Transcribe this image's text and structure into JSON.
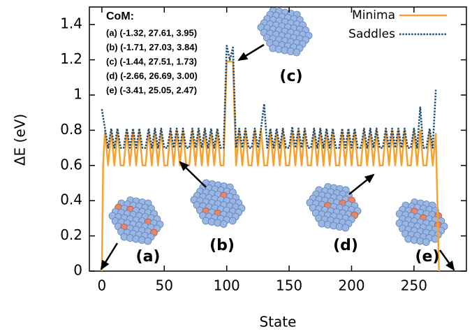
{
  "chart_data": {
    "type": "line",
    "y_label": "ΔE (eV)",
    "x_label": "State",
    "xlim": [
      -10,
      292
    ],
    "ylim": [
      0,
      1.5
    ],
    "xticks": [
      0,
      50,
      100,
      150,
      200,
      250
    ],
    "yticks": [
      0,
      0.2,
      0.4,
      0.6,
      0.8,
      1,
      1.2,
      1.4
    ],
    "grid": false,
    "legend": "upper right",
    "annotations": {
      "com_title": "CoM:",
      "com_lines": [
        "(a) (-1.32, 27.61, 3.95)",
        "(b) (-1.71, 27.03, 3.84)",
        "(c) (-1.44, 27.51, 1.73)",
        "(d) (-2.66, 26.69, 3.00)",
        "(e) (-3.41, 25.05, 2.47)"
      ],
      "labels": [
        "(a)",
        "(b)",
        "(c)",
        "(d)",
        "(e)"
      ]
    },
    "series": [
      {
        "name": "Minima",
        "color": "#f7a12f",
        "style": "solid",
        "x": [
          0,
          1,
          2.5,
          5,
          7.5,
          10,
          12.5,
          15,
          17.5,
          20,
          22.5,
          25,
          27.5,
          30,
          32.5,
          35,
          37.5,
          40,
          42.5,
          45,
          47.5,
          50,
          52.5,
          55,
          57.5,
          60,
          62.5,
          65,
          67.5,
          70,
          72.5,
          75,
          77.5,
          80,
          82.5,
          85,
          87.5,
          90,
          92.5,
          95,
          97.5,
          100,
          102.5,
          105,
          107.5,
          110,
          112.5,
          115,
          117.5,
          120,
          122.5,
          125,
          127.5,
          130,
          132.5,
          135,
          137.5,
          140,
          142.5,
          145,
          147.5,
          150,
          152.5,
          155,
          157.5,
          160,
          162.5,
          165,
          167.5,
          170,
          172.5,
          175,
          177.5,
          180,
          182.5,
          185,
          187.5,
          190,
          192.5,
          195,
          197.5,
          200,
          202.5,
          205,
          207.5,
          210,
          212.5,
          215,
          217.5,
          220,
          222.5,
          225,
          227.5,
          230,
          232.5,
          235,
          237.5,
          240,
          242.5,
          245,
          247.5,
          250,
          252.5,
          255,
          257.5,
          260,
          262.5,
          265,
          267.5,
          270
        ],
        "values": [
          0,
          0.6,
          0.8,
          0.6,
          0.8,
          0.6,
          0.8,
          0.6,
          0.6,
          0.8,
          0.6,
          0.8,
          0.6,
          0.8,
          0.6,
          0.6,
          0.8,
          0.6,
          0.8,
          0.6,
          0.8,
          0.6,
          0.6,
          0.8,
          0.6,
          0.8,
          0.6,
          0.8,
          0.6,
          0.6,
          0.8,
          0.6,
          0.8,
          0.6,
          0.8,
          0.6,
          0.8,
          0.6,
          0.8,
          0.6,
          0.6,
          1.19,
          1.19,
          1.19,
          0.6,
          0.8,
          0.6,
          0.8,
          0.6,
          0.6,
          0.8,
          0.6,
          0.8,
          0.6,
          0.6,
          0.8,
          0.6,
          0.8,
          0.6,
          0.8,
          0.6,
          0.6,
          0.8,
          0.6,
          0.8,
          0.6,
          0.8,
          0.6,
          0.6,
          0.8,
          0.6,
          0.8,
          0.6,
          0.8,
          0.6,
          0.8,
          0.6,
          0.6,
          0.8,
          0.6,
          0.8,
          0.6,
          0.8,
          0.6,
          0.6,
          0.8,
          0.6,
          0.8,
          0.6,
          0.8,
          0.6,
          0.6,
          0.8,
          0.6,
          0.8,
          0.6,
          0.8,
          0.6,
          0.8,
          0.6,
          0.6,
          0.8,
          0.6,
          0.8,
          0.6,
          0.6,
          0.8,
          0.6,
          0.78,
          0
        ]
      },
      {
        "name": "Saddles",
        "color": "#1f4e79",
        "style": "dotted",
        "x": [
          0,
          2.5,
          5,
          7.5,
          10,
          12.5,
          15,
          17.5,
          20,
          22.5,
          25,
          27.5,
          30,
          32.5,
          35,
          37.5,
          40,
          42.5,
          45,
          47.5,
          50,
          52.5,
          55,
          57.5,
          60,
          62.5,
          65,
          67.5,
          70,
          72.5,
          75,
          77.5,
          80,
          82.5,
          85,
          87.5,
          90,
          92.5,
          95,
          97.5,
          100,
          102.5,
          105,
          107.5,
          110,
          112.5,
          115,
          117.5,
          120,
          122.5,
          125,
          127.5,
          130,
          132.5,
          135,
          137.5,
          140,
          142.5,
          145,
          147.5,
          150,
          152.5,
          155,
          157.5,
          160,
          162.5,
          165,
          167.5,
          170,
          172.5,
          175,
          177.5,
          180,
          182.5,
          185,
          187.5,
          190,
          192.5,
          195,
          197.5,
          200,
          202.5,
          205,
          207.5,
          210,
          212.5,
          215,
          217.5,
          220,
          222.5,
          225,
          227.5,
          230,
          232.5,
          235,
          237.5,
          240,
          242.5,
          245,
          247.5,
          250,
          252.5,
          255,
          257.5,
          260,
          262.5,
          265,
          267.5
        ],
        "values": [
          0.92,
          0.81,
          0.7,
          0.81,
          0.7,
          0.81,
          0.7,
          0.7,
          0.81,
          0.7,
          0.81,
          0.7,
          0.81,
          0.7,
          0.7,
          0.81,
          0.7,
          0.81,
          0.7,
          0.81,
          0.7,
          0.7,
          0.81,
          0.7,
          0.81,
          0.7,
          0.81,
          0.7,
          0.7,
          0.81,
          0.7,
          0.81,
          0.7,
          0.81,
          0.7,
          0.81,
          0.7,
          0.81,
          0.7,
          0.7,
          1.28,
          1.2,
          1.27,
          0.7,
          0.81,
          0.7,
          0.81,
          0.7,
          0.7,
          0.81,
          0.7,
          0.81,
          0.95,
          0.7,
          0.81,
          0.7,
          0.81,
          0.7,
          0.81,
          0.7,
          0.7,
          0.82,
          0.7,
          0.81,
          0.7,
          0.81,
          0.7,
          0.7,
          0.81,
          0.7,
          0.81,
          0.7,
          0.81,
          0.7,
          0.81,
          0.7,
          0.7,
          0.81,
          0.7,
          0.81,
          0.7,
          0.81,
          0.7,
          0.7,
          0.81,
          0.7,
          0.81,
          0.7,
          0.81,
          0.7,
          0.7,
          0.81,
          0.7,
          0.81,
          0.7,
          0.81,
          0.7,
          0.81,
          0.7,
          0.7,
          0.81,
          0.7,
          0.93,
          0.7,
          0.7,
          0.81,
          0.7,
          1.03
        ]
      }
    ]
  }
}
